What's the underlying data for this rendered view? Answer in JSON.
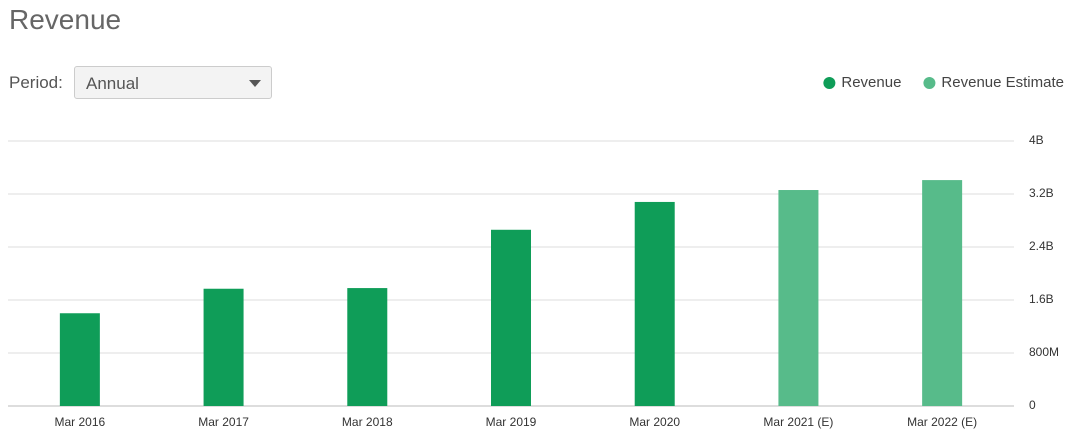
{
  "controls": {
    "period_label": "Period:",
    "period_value": "Annual"
  },
  "chart_data": {
    "type": "bar",
    "title": "Revenue",
    "categories": [
      "Mar 2016",
      "Mar 2017",
      "Mar 2018",
      "Mar 2019",
      "Mar 2020",
      "Mar 2021 (E)",
      "Mar 2022 (E)"
    ],
    "series": [
      {
        "name": "Revenue",
        "color": "#0f9d58",
        "values": [
          1400000000,
          1770000000,
          1780000000,
          2660000000,
          3080000000,
          null,
          null
        ]
      },
      {
        "name": "Revenue Estimate",
        "color": "#57bb8a",
        "values": [
          null,
          null,
          null,
          null,
          null,
          3260000000,
          3410000000
        ]
      }
    ],
    "ylim": [
      0,
      4000000000
    ],
    "yticks": [
      0,
      {
        "value": 800000000,
        "label": "800M"
      },
      {
        "value": 1600000000,
        "label": "1.6B"
      },
      {
        "value": 2400000000,
        "label": "2.4B"
      },
      {
        "value": 3200000000,
        "label": "3.2B"
      },
      {
        "value": 4000000000,
        "label": "4B"
      }
    ],
    "grid": true,
    "legend": "top-right"
  }
}
